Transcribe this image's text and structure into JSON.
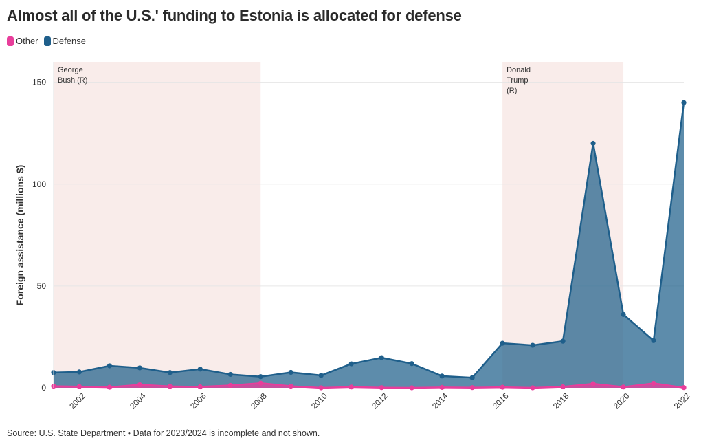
{
  "chart_data": {
    "type": "area",
    "title": "Almost all of the U.S.' funding to Estonia is allocated for defense",
    "ylabel": "Foreign assistance (millions $)",
    "xlabel": "",
    "ylim": [
      0,
      160
    ],
    "xlim": [
      2001.15,
      2022
    ],
    "yticks": [
      0,
      50,
      100,
      150
    ],
    "xticks": [
      2002,
      2004,
      2006,
      2008,
      2010,
      2012,
      2014,
      2016,
      2018,
      2020,
      2022
    ],
    "grid": true,
    "legend_placement": "top-left",
    "x": [
      2001.15,
      2002,
      2003,
      2004,
      2005,
      2006,
      2007,
      2008,
      2009,
      2010,
      2011,
      2012,
      2013,
      2014,
      2015,
      2016,
      2017,
      2018,
      2019,
      2020,
      2021,
      2022
    ],
    "series": [
      {
        "name": "Other",
        "color": "#e83e9b",
        "values": [
          0.8,
          0.6,
          0.3,
          1.5,
          0.7,
          0.5,
          1.2,
          2.3,
          0.8,
          0.0,
          0.4,
          0.1,
          0.0,
          0.2,
          0.1,
          0.3,
          0.0,
          0.5,
          2.0,
          0.4,
          2.2,
          0.1
        ]
      },
      {
        "name": "Defense",
        "color": "#1f5f8b",
        "values": [
          7.5,
          7.8,
          10.8,
          9.8,
          7.5,
          9.2,
          6.6,
          5.5,
          7.6,
          6.1,
          11.8,
          14.8,
          11.9,
          5.8,
          5.0,
          21.9,
          20.9,
          22.9,
          120.0,
          36.0,
          23.2,
          140.0
        ]
      }
    ],
    "annotations": [
      {
        "label_lines": [
          "George",
          "Bush (R)"
        ],
        "x_start": 2001.15,
        "x_end": 2008
      },
      {
        "label_lines": [
          "Donald",
          "Trump",
          "(R)"
        ],
        "x_start": 2016,
        "x_end": 2020
      }
    ],
    "source": {
      "prefix": "Source: ",
      "link": "U.S. State Department",
      "note": " • Data for 2023/2024 is incomplete and not shown."
    }
  }
}
